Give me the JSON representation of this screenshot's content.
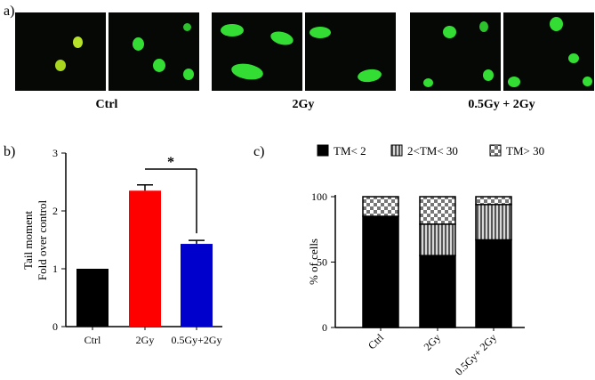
{
  "panel_labels": {
    "a": "a)",
    "b": "b)",
    "c": "c)"
  },
  "micrograph_groups": [
    "Ctrl",
    "2Gy",
    "0.5Gy + 2Gy"
  ],
  "colors": {
    "ctrl": "#000000",
    "gy2": "#ff0000",
    "combo": "#0000cc",
    "cells": "#33dd33",
    "background": "#050805"
  },
  "chart_data": [
    {
      "type": "bar",
      "title": "",
      "categories": [
        "Ctrl",
        "2Gy",
        "0.5Gy+2Gy"
      ],
      "values": [
        1.0,
        2.35,
        1.43
      ],
      "errors": [
        0.0,
        0.1,
        0.06
      ],
      "ylabel_line1": "Tail moment",
      "ylabel_line2": "Fold over control",
      "ylim": [
        0,
        3
      ],
      "yticks": [
        "0",
        "1",
        "2",
        "3"
      ],
      "significance": {
        "between": [
          "2Gy",
          "0.5Gy+2Gy"
        ],
        "label": "*"
      }
    },
    {
      "type": "bar",
      "stacked": true,
      "categories": [
        "Ctrl",
        "2Gy",
        "0.5Gy+ 2Gy"
      ],
      "series": [
        {
          "name": "TM< 2",
          "values": [
            85,
            55,
            67
          ]
        },
        {
          "name": "2<TM< 30",
          "values": [
            0,
            24,
            27
          ]
        },
        {
          "name": "TM> 30",
          "values": [
            15,
            21,
            6
          ]
        }
      ],
      "ylabel": "% of cells",
      "ylim": [
        0,
        100
      ],
      "yticks": [
        "0",
        "50",
        "100"
      ],
      "legend_position": "top"
    }
  ]
}
